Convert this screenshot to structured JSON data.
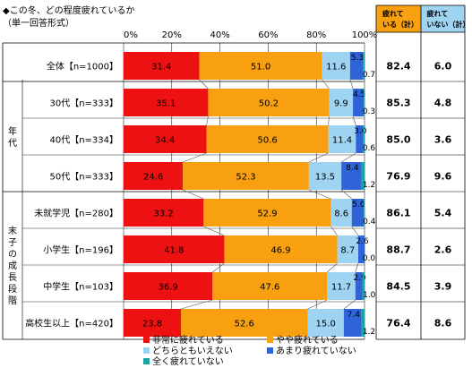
{
  "title": "◆この冬、どの程度疲れているか",
  "subtitle": "（単一回答形式）",
  "chart_data": {
    "type": "bar",
    "stacked": true,
    "orientation": "horizontal",
    "xlim": [
      0,
      100
    ],
    "x_ticks": [
      "0%",
      "20%",
      "40%",
      "60%",
      "80%",
      "100%"
    ],
    "rows": [
      {
        "label": "全体【n=1000】",
        "group": "",
        "values": [
          31.4,
          51.0,
          11.6,
          5.3,
          0.7
        ],
        "tired_total": "82.4",
        "not_tired_total": "6.0"
      },
      {
        "label": "30代【n=333】",
        "group": "年代",
        "values": [
          35.1,
          50.2,
          9.9,
          4.5,
          0.3
        ],
        "tired_total": "85.3",
        "not_tired_total": "4.8"
      },
      {
        "label": "40代【n=334】",
        "group": "年代",
        "values": [
          34.4,
          50.6,
          11.4,
          3.0,
          0.6
        ],
        "tired_total": "85.0",
        "not_tired_total": "3.6"
      },
      {
        "label": "50代【n=333】",
        "group": "年代",
        "values": [
          24.6,
          52.3,
          13.5,
          8.4,
          1.2
        ],
        "tired_total": "76.9",
        "not_tired_total": "9.6"
      },
      {
        "label": "未就学児【n=280】",
        "group": "末子の成長段階",
        "values": [
          33.2,
          52.9,
          8.6,
          5.0,
          0.4
        ],
        "tired_total": "86.1",
        "not_tired_total": "5.4"
      },
      {
        "label": "小学生【n=196】",
        "group": "末子の成長段階",
        "values": [
          41.8,
          46.9,
          8.7,
          2.6,
          0.0
        ],
        "tired_total": "88.7",
        "not_tired_total": "2.6"
      },
      {
        "label": "中学生【n=103】",
        "group": "末子の成長段階",
        "values": [
          36.9,
          47.6,
          11.7,
          2.9,
          1.0
        ],
        "tired_total": "84.5",
        "not_tired_total": "3.9"
      },
      {
        "label": "高校生以上【n=420】",
        "group": "末子の成長段階",
        "values": [
          23.8,
          52.6,
          15.0,
          7.4,
          1.2
        ],
        "tired_total": "76.4",
        "not_tired_total": "8.6"
      }
    ],
    "groups": [
      {
        "name": "年代",
        "vertical_text": "年代"
      },
      {
        "name": "末子の成長段階",
        "vertical_text": "末子の成長段階"
      }
    ],
    "series": [
      {
        "name": "非常に疲れている",
        "color": "#ee1111"
      },
      {
        "name": "やや疲れている",
        "color": "#f8a010"
      },
      {
        "name": "どちらともいえない",
        "color": "#9fd3f2"
      },
      {
        "name": "あまり疲れていない",
        "color": "#2f64d8"
      },
      {
        "name": "全く疲れていない",
        "color": "#1ba4a4"
      }
    ],
    "summary_columns": [
      {
        "lines": [
          "疲れて",
          "いる（計）"
        ],
        "color": "#f8a010"
      },
      {
        "lines": [
          "疲れて",
          "いない（計）"
        ],
        "color": "#9fd3f2"
      }
    ],
    "legend_position": "bottom"
  }
}
